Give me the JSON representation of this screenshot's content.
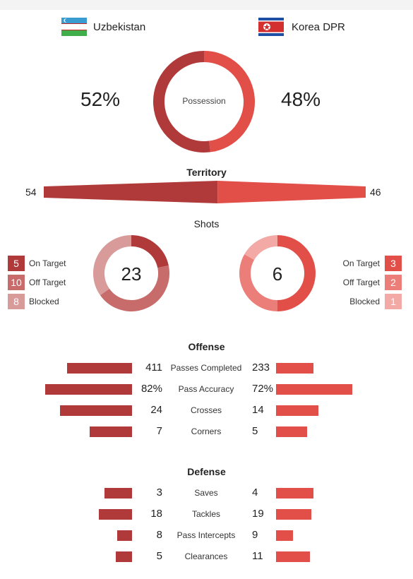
{
  "teams": {
    "home": {
      "name": "Uzbekistan",
      "flag": "uzbekistan-flag-icon"
    },
    "away": {
      "name": "Korea DPR",
      "flag": "korea-dpr-flag-icon"
    }
  },
  "colors": {
    "home": "#b03a3a",
    "away": "#e24e48",
    "home_light": "#c76b6b",
    "home_lighter": "#d99a9a",
    "away_light": "#ec7e79",
    "away_lighter": "#f3aaa6"
  },
  "possession": {
    "label": "Possession",
    "home_text": "52%",
    "away_text": "48%",
    "home": 52,
    "away": 48
  },
  "territory": {
    "title": "Territory",
    "home": 54,
    "away": 46
  },
  "shots": {
    "title": "Shots",
    "home": {
      "total": "23",
      "items": [
        {
          "value": "5",
          "label": "On Target"
        },
        {
          "value": "10",
          "label": "Off Target"
        },
        {
          "value": "8",
          "label": "Blocked"
        }
      ]
    },
    "away": {
      "total": "6",
      "items": [
        {
          "value": "3",
          "label": "On Target"
        },
        {
          "value": "2",
          "label": "Off Target"
        },
        {
          "value": "1",
          "label": "Blocked"
        }
      ]
    }
  },
  "offense": {
    "title": "Offense",
    "rows": [
      {
        "label": "Passes Completed",
        "home": "411",
        "away": "233",
        "home_frac": 0.61,
        "away_frac": 0.35
      },
      {
        "label": "Pass Accuracy",
        "home": "82%",
        "away": "72%",
        "home_frac": 0.82,
        "away_frac": 0.72
      },
      {
        "label": "Crosses",
        "home": "24",
        "away": "14",
        "home_frac": 0.68,
        "away_frac": 0.4
      },
      {
        "label": "Corners",
        "home": "7",
        "away": "5",
        "home_frac": 0.4,
        "away_frac": 0.29
      }
    ]
  },
  "defense": {
    "title": "Defense",
    "rows": [
      {
        "label": "Saves",
        "home": "3",
        "away": "4",
        "home_frac": 0.26,
        "away_frac": 0.35
      },
      {
        "label": "Tackles",
        "home": "18",
        "away": "19",
        "home_frac": 0.31,
        "away_frac": 0.33
      },
      {
        "label": "Pass Intercepts",
        "home": "8",
        "away": "9",
        "home_frac": 0.14,
        "away_frac": 0.16
      },
      {
        "label": "Clearances",
        "home": "5",
        "away": "11",
        "home_frac": 0.15,
        "away_frac": 0.32
      }
    ]
  }
}
